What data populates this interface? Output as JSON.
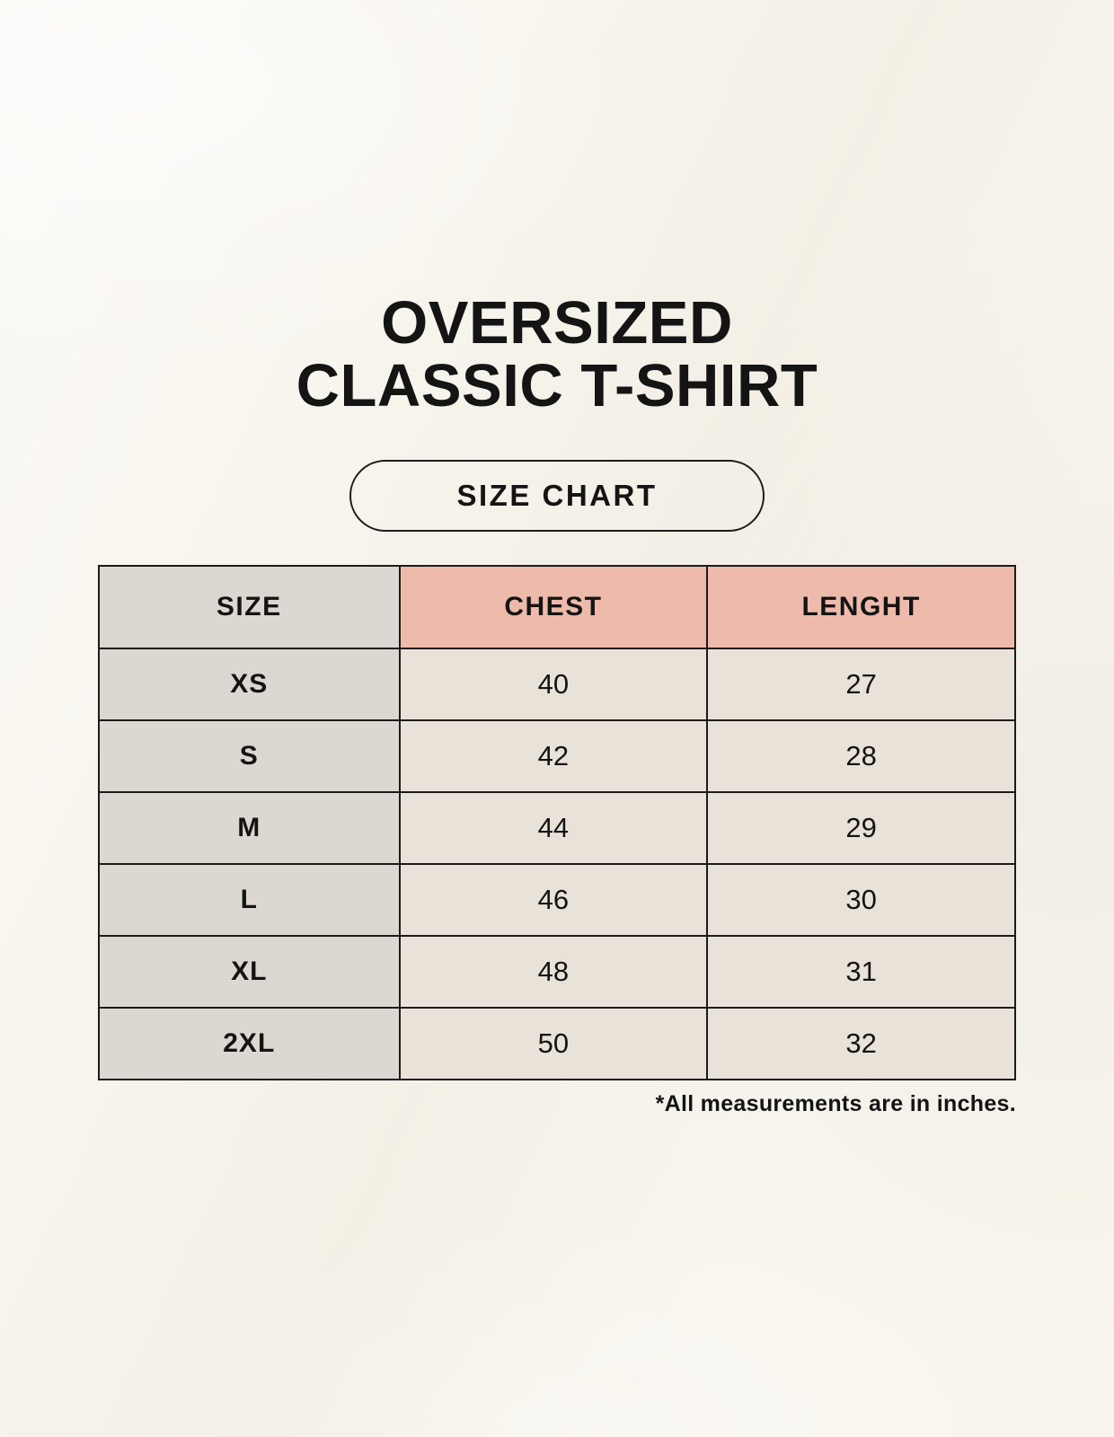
{
  "title": {
    "line1": "OVERSIZED",
    "line2": "CLASSIC T-SHIRT"
  },
  "size_chart_button": {
    "label": "SIZE CHART"
  },
  "chart_data": {
    "type": "table",
    "title": "OVERSIZED CLASSIC T-SHIRT",
    "subtitle": "SIZE CHART",
    "columns": [
      "SIZE",
      "CHEST",
      "LENGHT"
    ],
    "rows": [
      [
        "XS",
        "40",
        "27"
      ],
      [
        "S",
        "42",
        "28"
      ],
      [
        "M",
        "44",
        "29"
      ],
      [
        "L",
        "46",
        "30"
      ],
      [
        "XL",
        "48",
        "31"
      ],
      [
        "2XL",
        "50",
        "32"
      ]
    ],
    "note": "*All measurements are in inches.",
    "units": "inches"
  },
  "colors": {
    "background": "#f8f5ee",
    "cell_gray": "#ddd7d1",
    "header_pink": "#edbaab",
    "cell_beige": "#e9e2d8",
    "border_black": "#1b1b1b",
    "text_black": "#141414"
  }
}
